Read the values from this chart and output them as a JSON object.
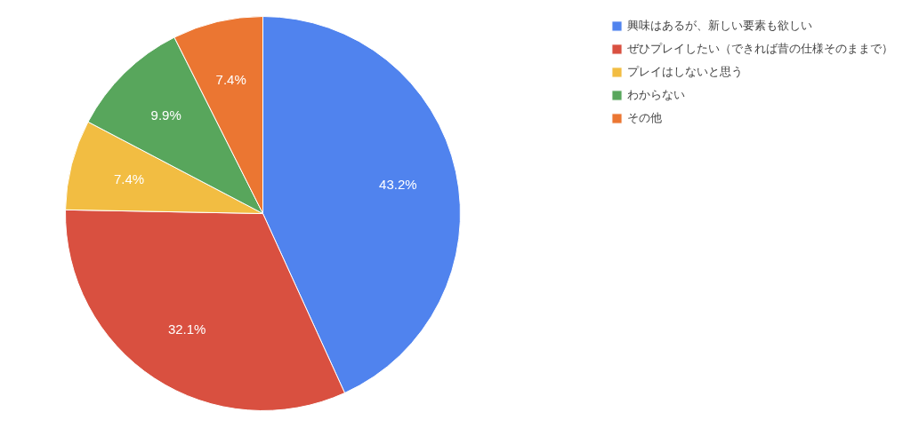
{
  "chart_data": {
    "type": "pie",
    "categories": [
      "興味はあるが、新しい要素も欲しい",
      "ぜひプレイしたい（できれば昔の仕様そのままで）",
      "プレイはしないと思う",
      "わからない",
      "その他"
    ],
    "values": [
      43.2,
      32.1,
      7.4,
      9.9,
      7.4
    ],
    "colors": [
      "#5083ee",
      "#d95040",
      "#f2bd42",
      "#58a65c",
      "#eb7632"
    ],
    "value_labels": [
      "43.2%",
      "32.1%",
      "7.4%",
      "9.9%",
      "7.4%"
    ],
    "legend": "top right"
  }
}
